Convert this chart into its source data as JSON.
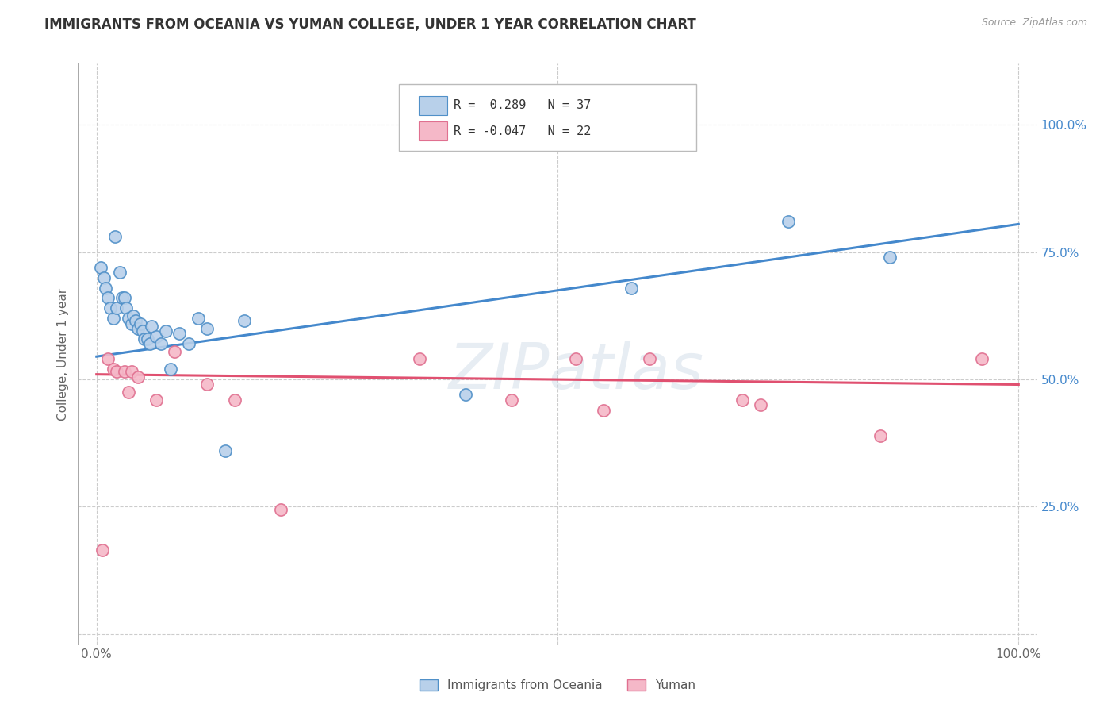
{
  "title": "IMMIGRANTS FROM OCEANIA VS YUMAN COLLEGE, UNDER 1 YEAR CORRELATION CHART",
  "source_text": "Source: ZipAtlas.com",
  "ylabel": "College, Under 1 year",
  "xlim": [
    -0.02,
    1.02
  ],
  "ylim": [
    -0.02,
    1.12
  ],
  "xticks": [
    0.0,
    0.25,
    0.5,
    0.75,
    1.0
  ],
  "xtick_labels": [
    "0.0%",
    "",
    "",
    "",
    "100.0%"
  ],
  "right_yticks": [
    0.0,
    0.25,
    0.5,
    0.75,
    1.0
  ],
  "right_ytick_labels": [
    "",
    "25.0%",
    "50.0%",
    "75.0%",
    "100.0%"
  ],
  "grid_yticks": [
    0.0,
    0.25,
    0.5,
    0.75,
    1.0
  ],
  "background_color": "#ffffff",
  "grid_color": "#cccccc",
  "blue_fill": "#b8d0ea",
  "blue_edge": "#5090c8",
  "pink_fill": "#f5b8c8",
  "pink_edge": "#e07090",
  "blue_line_color": "#4488cc",
  "pink_line_color": "#e05070",
  "watermark": "ZIPatlas",
  "legend_label1": "Immigrants from Oceania",
  "legend_label2": "Yuman",
  "blue_scatter_x": [
    0.005,
    0.008,
    0.01,
    0.012,
    0.015,
    0.018,
    0.02,
    0.022,
    0.025,
    0.028,
    0.03,
    0.032,
    0.035,
    0.038,
    0.04,
    0.042,
    0.045,
    0.048,
    0.05,
    0.052,
    0.055,
    0.058,
    0.06,
    0.065,
    0.07,
    0.075,
    0.08,
    0.09,
    0.1,
    0.11,
    0.12,
    0.14,
    0.16,
    0.4,
    0.58,
    0.75,
    0.86
  ],
  "blue_scatter_y": [
    0.72,
    0.7,
    0.68,
    0.66,
    0.64,
    0.62,
    0.78,
    0.64,
    0.71,
    0.66,
    0.66,
    0.64,
    0.62,
    0.61,
    0.625,
    0.615,
    0.6,
    0.61,
    0.595,
    0.58,
    0.58,
    0.57,
    0.605,
    0.585,
    0.57,
    0.595,
    0.52,
    0.59,
    0.57,
    0.62,
    0.6,
    0.36,
    0.615,
    0.47,
    0.68,
    0.81,
    0.74
  ],
  "pink_scatter_x": [
    0.006,
    0.012,
    0.018,
    0.022,
    0.03,
    0.038,
    0.045,
    0.085,
    0.12,
    0.15,
    0.35,
    0.52,
    0.6,
    0.72,
    0.85,
    0.96,
    0.2,
    0.45,
    0.55,
    0.7,
    0.035,
    0.065
  ],
  "pink_scatter_y": [
    0.165,
    0.54,
    0.52,
    0.515,
    0.515,
    0.515,
    0.505,
    0.555,
    0.49,
    0.46,
    0.54,
    0.54,
    0.54,
    0.45,
    0.39,
    0.54,
    0.245,
    0.46,
    0.44,
    0.46,
    0.475,
    0.46
  ],
  "blue_trend_x": [
    0.0,
    1.0
  ],
  "blue_trend_y": [
    0.545,
    0.805
  ],
  "pink_trend_x": [
    0.0,
    1.0
  ],
  "pink_trend_y": [
    0.51,
    0.49
  ]
}
